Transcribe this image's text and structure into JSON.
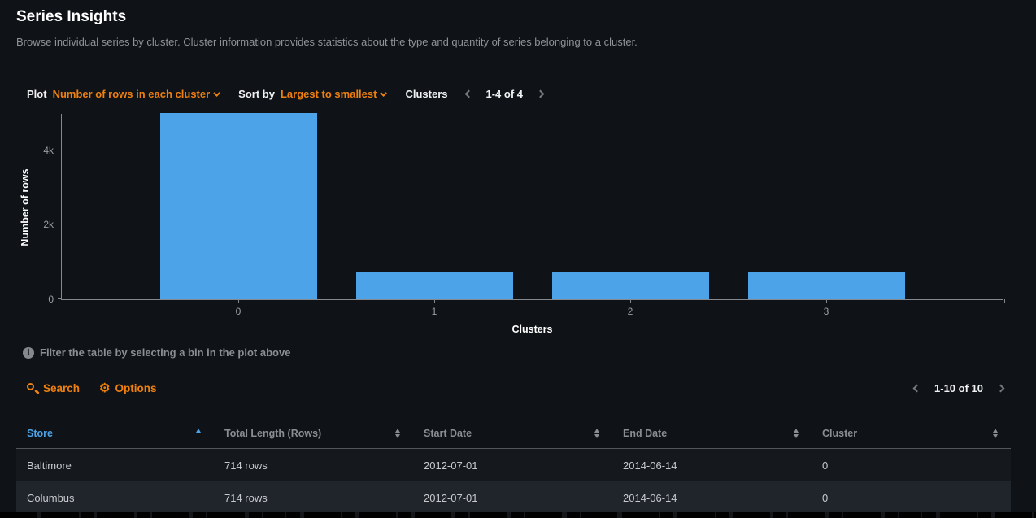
{
  "page": {
    "title": "Series Insights",
    "subtitle": "Browse individual series by cluster. Cluster information provides statistics about the type and quantity of series belonging to a cluster."
  },
  "controls": {
    "plot_label": "Plot",
    "plot_value": "Number of rows in each cluster",
    "sort_label": "Sort by",
    "sort_value": "Largest to smallest",
    "clusters_label": "Clusters",
    "clusters_pager_text": "1-4 of 4"
  },
  "chart_data": {
    "type": "bar",
    "title": "",
    "categories": [
      "0",
      "1",
      "2",
      "3"
    ],
    "values": [
      4998,
      714,
      714,
      714
    ],
    "xlabel": "Clusters",
    "ylabel": "Number of rows",
    "ylim": [
      0,
      4998
    ],
    "yticks": [
      {
        "value": 0,
        "label": "0"
      },
      {
        "value": 2000,
        "label": "2k"
      },
      {
        "value": 4000,
        "label": "4k"
      }
    ],
    "bar_color": "#4da3e8",
    "grid": true,
    "legend": null
  },
  "note": {
    "icon": "info-icon",
    "text": "Filter the table by selecting a bin in the plot above"
  },
  "toolbar": {
    "search_label": "Search",
    "options_label": "Options",
    "pager_text": "1-10 of 10"
  },
  "table": {
    "columns": [
      {
        "label": "Store",
        "sort": "asc"
      },
      {
        "label": "Total Length (Rows)",
        "sort": "none"
      },
      {
        "label": "Start Date",
        "sort": "none"
      },
      {
        "label": "End Date",
        "sort": "none"
      },
      {
        "label": "Cluster",
        "sort": "none"
      }
    ],
    "rows": [
      [
        "Baltimore",
        "714 rows",
        "2012-07-01",
        "2014-06-14",
        "0"
      ],
      [
        "Columbus",
        "714 rows",
        "2012-07-01",
        "2014-06-14",
        "0"
      ]
    ]
  },
  "colors": {
    "accent_orange": "#ef800f",
    "accent_blue": "#4da3e8",
    "background": "#0f1317"
  }
}
